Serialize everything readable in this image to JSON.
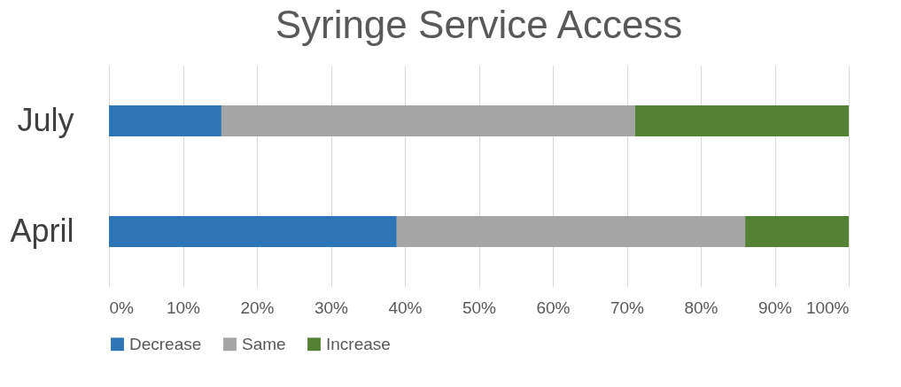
{
  "chart_data": {
    "type": "bar",
    "title": "Syringe Service Access",
    "orientation": "horizontal",
    "stacked": true,
    "categories": [
      "July",
      "April"
    ],
    "series": [
      {
        "name": "Decrease",
        "color": "#2e75b6",
        "values": [
          15.2,
          38.9
        ]
      },
      {
        "name": "Same",
        "color": "#a5a5a5",
        "values": [
          55.9,
          47.1
        ]
      },
      {
        "name": "Increase",
        "color": "#548235",
        "values": [
          28.9,
          14.0
        ]
      }
    ],
    "xlim": [
      0,
      100
    ],
    "xticks": [
      {
        "value": 0,
        "label": "0%"
      },
      {
        "value": 10,
        "label": "10%"
      },
      {
        "value": 20,
        "label": "20%"
      },
      {
        "value": 30,
        "label": "30%"
      },
      {
        "value": 40,
        "label": "40%"
      },
      {
        "value": 50,
        "label": "50%"
      },
      {
        "value": 60,
        "label": "60%"
      },
      {
        "value": 70,
        "label": "70%"
      },
      {
        "value": 80,
        "label": "80%"
      },
      {
        "value": 90,
        "label": "90%"
      },
      {
        "value": 100,
        "label": "100%"
      }
    ],
    "grid": "x",
    "legend": "bottom"
  }
}
